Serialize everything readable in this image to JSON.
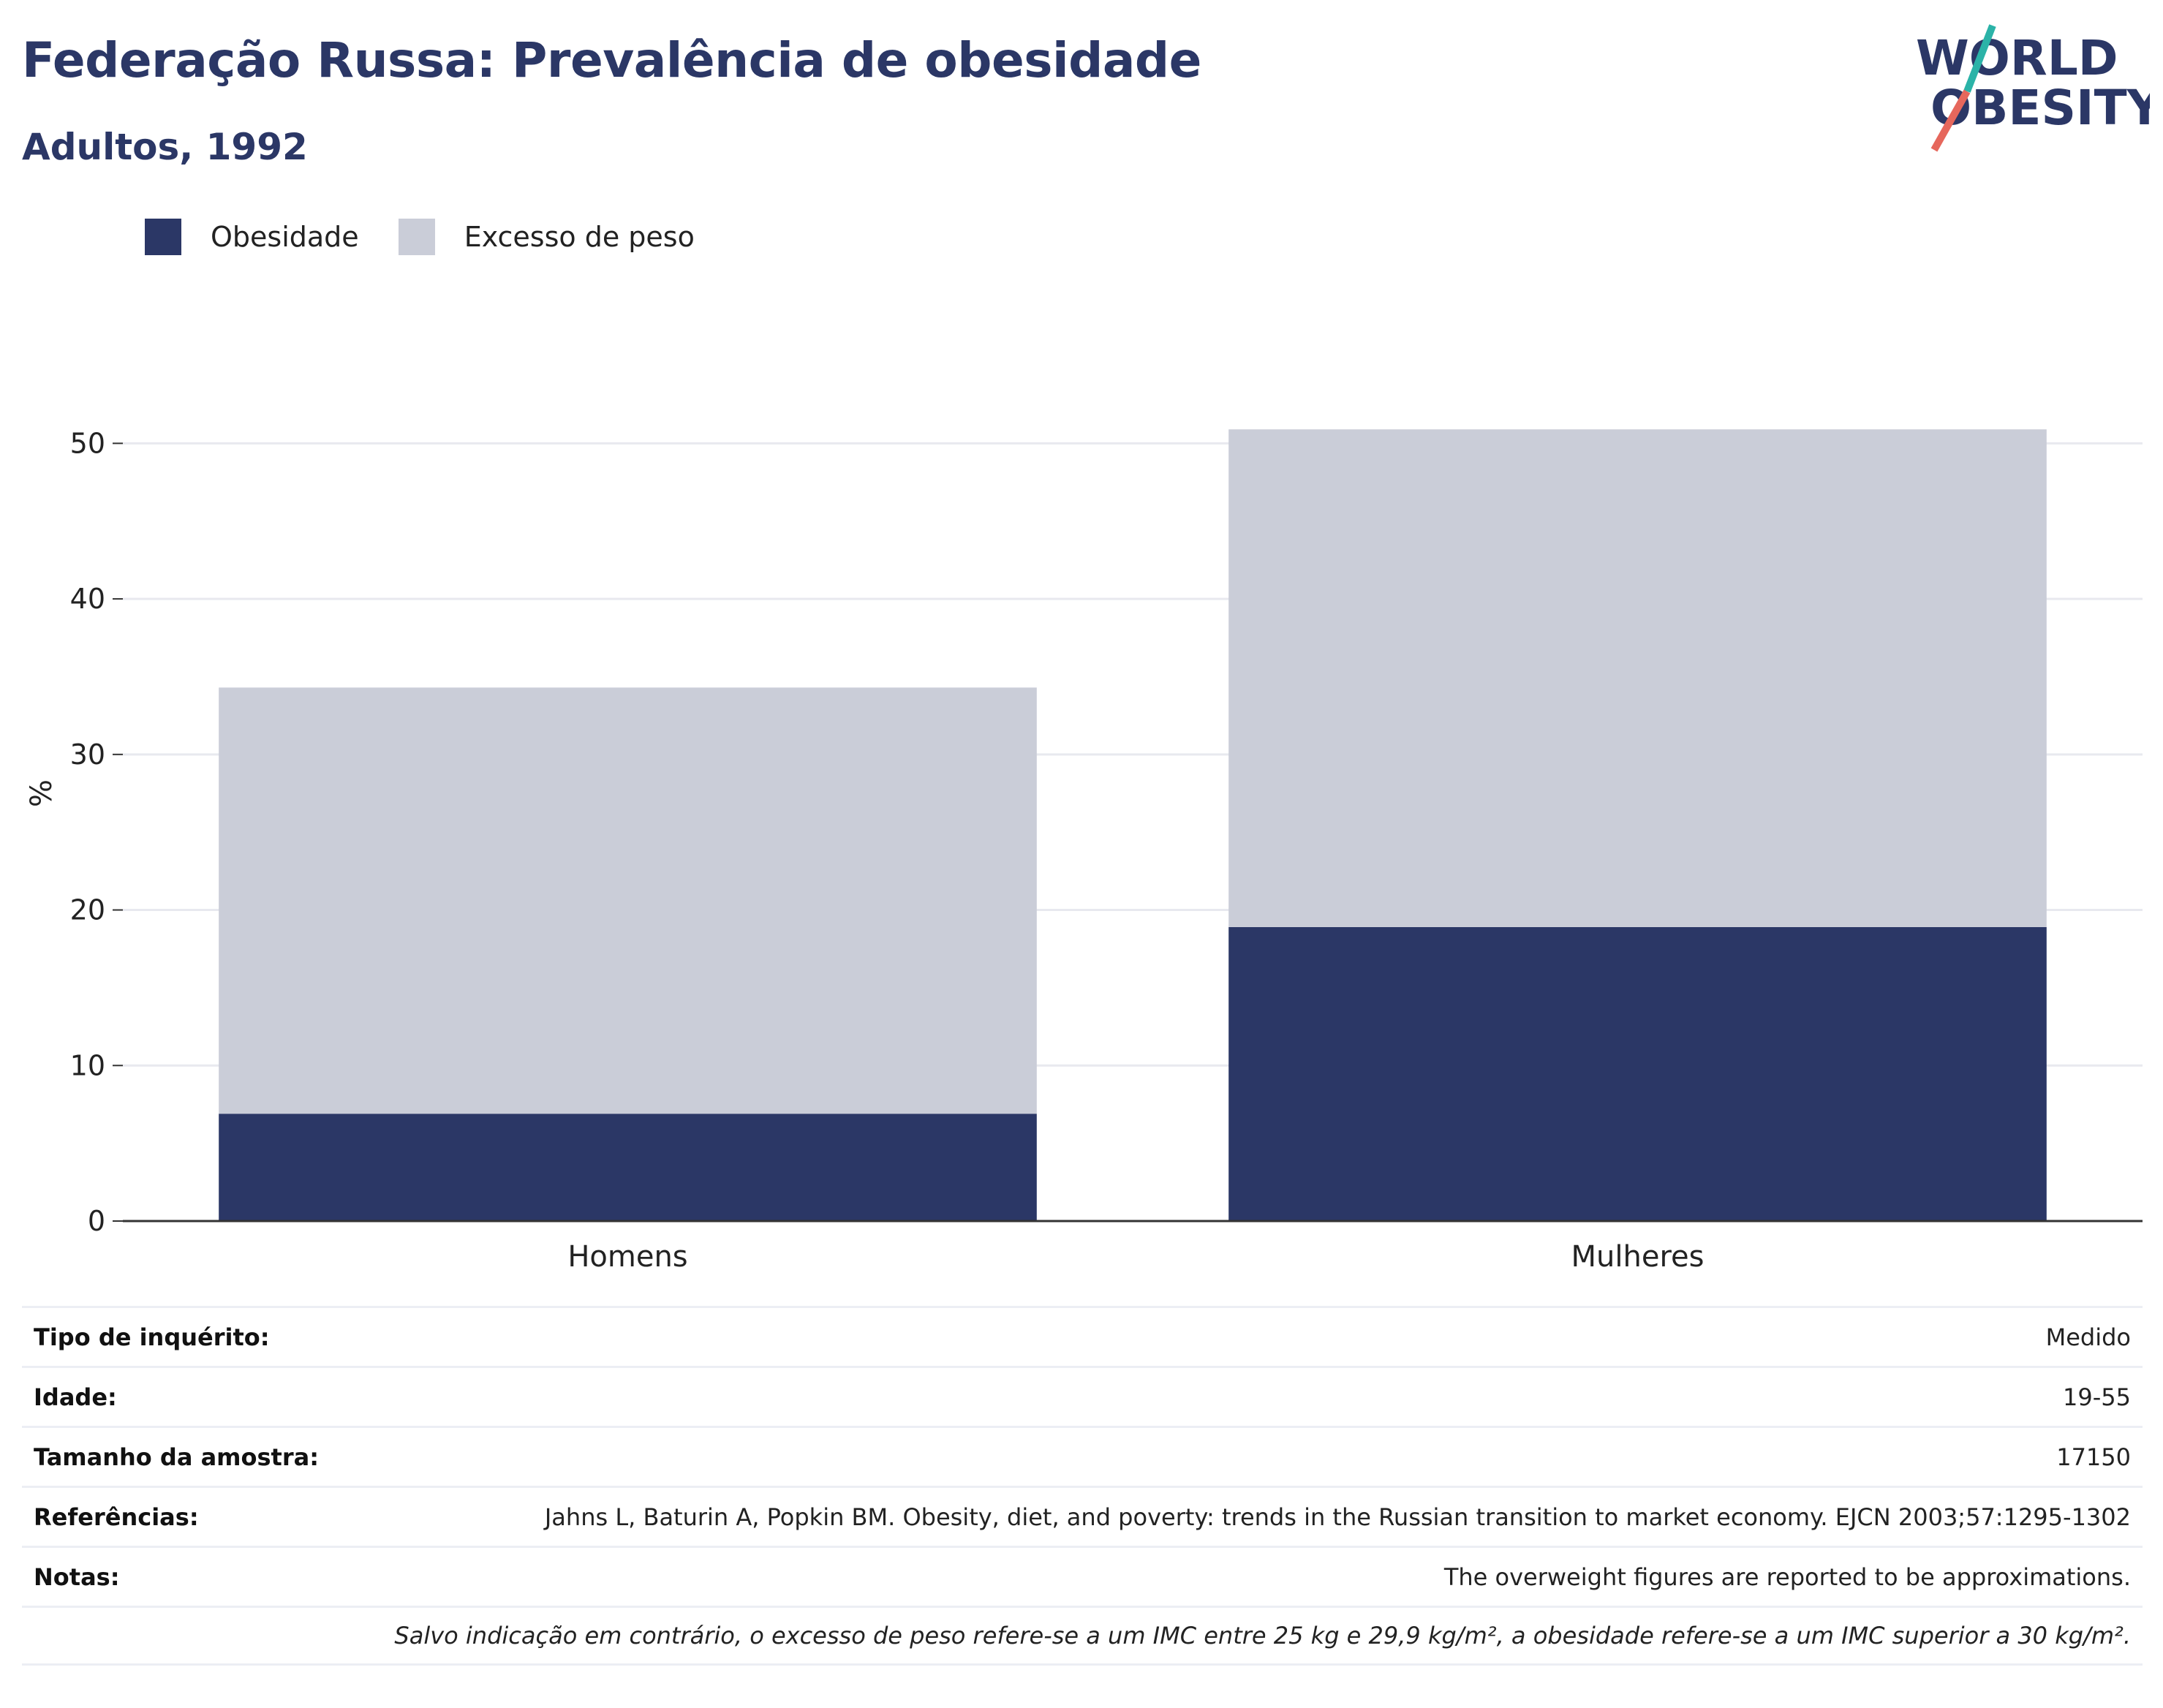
{
  "header": {
    "title": "Federação Russa: Prevalência de obesidade",
    "subtitle": "Adultos, 1992"
  },
  "logo": {
    "line1": "WORLD",
    "line2": "OBESITY"
  },
  "colors": {
    "obesity": "#2b3766",
    "overweight": "#cacdd8",
    "grid": "#e8e9ef",
    "axis": "#333333",
    "text": "#222222"
  },
  "chart_data": {
    "type": "bar",
    "stacked": true,
    "categories": [
      "Homens",
      "Mulheres"
    ],
    "series": [
      {
        "name": "Obesidade",
        "values": [
          6.9,
          18.9
        ]
      },
      {
        "name": "Excesso de peso",
        "values": [
          27.4,
          32.0
        ]
      }
    ],
    "ylabel": "%",
    "xlabel": "",
    "ylim": [
      0,
      55
    ],
    "yticks": [
      0,
      10,
      20,
      30,
      40,
      50
    ],
    "grid": true,
    "legend_position": "top-left"
  },
  "info_table": [
    {
      "label": "Tipo de inquérito:",
      "value": "Medido"
    },
    {
      "label": "Idade:",
      "value": "19-55"
    },
    {
      "label": "Tamanho da amostra:",
      "value": "17150"
    },
    {
      "label": "Referências:",
      "value": "Jahns L, Baturin A, Popkin BM. Obesity, diet, and poverty: trends in the Russian transition to market economy. EJCN 2003;57:1295-1302"
    },
    {
      "label": "Notas:",
      "value": "The overweight figures are reported to be approximations."
    }
  ],
  "footnote": "Salvo indicação em contrário, o excesso de peso refere-se a um IMC entre 25 kg e 29,9 kg/m², a obesidade refere-se a um IMC superior a 30 kg/m²."
}
